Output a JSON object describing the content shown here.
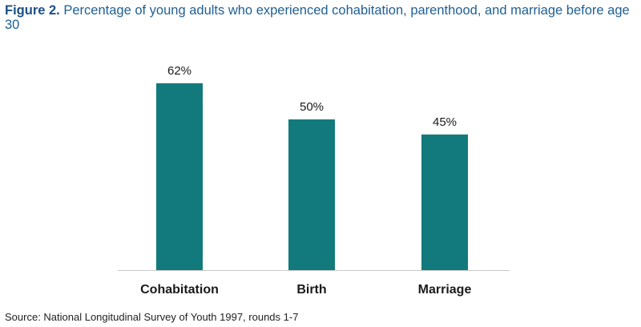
{
  "title": {
    "label": "Figure 2.",
    "text": "Percentage of young adults who experienced cohabitation, parenthood, and marriage before age 30"
  },
  "source": "Source: National Longitudinal Survey of Youth 1997, rounds 1-7",
  "colors": {
    "bar": "#127a7c",
    "title": "#1f5f93",
    "axis": "#c8c8c8"
  },
  "chart_data": {
    "type": "bar",
    "categories": [
      "Cohabitation",
      "Birth",
      "Marriage"
    ],
    "values": [
      62,
      50,
      45
    ],
    "value_labels": [
      "62%",
      "50%",
      "45%"
    ],
    "ylim": [
      0,
      71
    ],
    "grid": false,
    "legend": "none"
  }
}
